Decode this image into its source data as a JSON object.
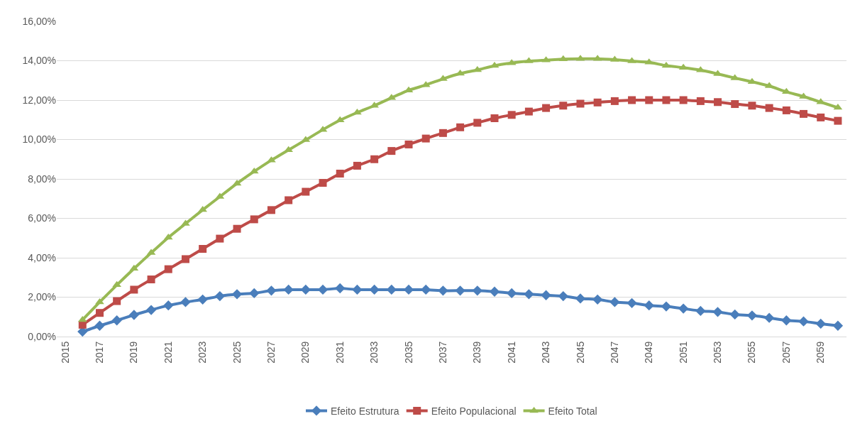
{
  "chart_data": {
    "type": "line",
    "categories": [
      "2015",
      null,
      "2017",
      null,
      "2019",
      null,
      "2021",
      null,
      "2023",
      null,
      "2025",
      null,
      "2027",
      null,
      "2029",
      null,
      "2031",
      null,
      "2033",
      null,
      "2035",
      null,
      "2037",
      null,
      "2039",
      null,
      "2041",
      null,
      "2043",
      null,
      "2045",
      null,
      "2047",
      null,
      "2049",
      null,
      "2051",
      null,
      "2053",
      null,
      "2055",
      null,
      "2057",
      null,
      "2059",
      null
    ],
    "ylim": [
      0,
      16
    ],
    "yticks": [
      {
        "value": 0,
        "label": "0,00%"
      },
      {
        "value": 2,
        "label": "2,00%"
      },
      {
        "value": 4,
        "label": "4,00%"
      },
      {
        "value": 6,
        "label": "6,00%"
      },
      {
        "value": 8,
        "label": "8,00%"
      },
      {
        "value": 10,
        "label": "10,00%"
      },
      {
        "value": 12,
        "label": "12,00%"
      },
      {
        "value": 14,
        "label": "14,00%"
      },
      {
        "value": 16,
        "label": "16,00%"
      }
    ],
    "grid": "y",
    "legend": "bottom",
    "line_style": "solid",
    "series": [
      {
        "name": "Efeito Estrutura",
        "color": "#4a7ebb",
        "marker": "diamond",
        "values": [
          null,
          0.25,
          0.55,
          0.82,
          1.1,
          1.35,
          1.58,
          1.75,
          1.88,
          2.05,
          2.15,
          2.2,
          2.33,
          2.38,
          2.38,
          2.38,
          2.45,
          2.38,
          2.38,
          2.38,
          2.38,
          2.38,
          2.33,
          2.33,
          2.33,
          2.28,
          2.2,
          2.15,
          2.1,
          2.05,
          1.93,
          1.88,
          1.75,
          1.7,
          1.58,
          1.53,
          1.42,
          1.3,
          1.25,
          1.12,
          1.07,
          0.95,
          0.82,
          0.77,
          0.65,
          0.55
        ]
      },
      {
        "name": "Efeito Populacional",
        "color": "#be4b48",
        "marker": "square",
        "values": [
          null,
          0.6,
          1.2,
          1.8,
          2.38,
          2.9,
          3.42,
          3.93,
          4.45,
          4.97,
          5.47,
          5.95,
          6.42,
          6.92,
          7.35,
          7.8,
          8.27,
          8.67,
          9.0,
          9.42,
          9.75,
          10.05,
          10.33,
          10.62,
          10.85,
          11.08,
          11.25,
          11.42,
          11.6,
          11.72,
          11.82,
          11.88,
          11.95,
          12.0,
          12.0,
          12.0,
          12.0,
          11.95,
          11.9,
          11.8,
          11.72,
          11.6,
          11.48,
          11.3,
          11.12,
          10.95
        ]
      },
      {
        "name": "Efeito Total",
        "color": "#98b954",
        "marker": "triangle",
        "values": [
          null,
          0.85,
          1.75,
          2.62,
          3.45,
          4.25,
          5.03,
          5.73,
          6.43,
          7.1,
          7.77,
          8.38,
          8.95,
          9.47,
          9.98,
          10.5,
          10.98,
          11.37,
          11.72,
          12.12,
          12.5,
          12.77,
          13.08,
          13.35,
          13.53,
          13.75,
          13.88,
          13.98,
          14.03,
          14.08,
          14.1,
          14.1,
          14.05,
          13.98,
          13.92,
          13.75,
          13.65,
          13.52,
          13.33,
          13.12,
          12.93,
          12.72,
          12.42,
          12.18,
          11.9,
          11.62
        ]
      }
    ]
  }
}
